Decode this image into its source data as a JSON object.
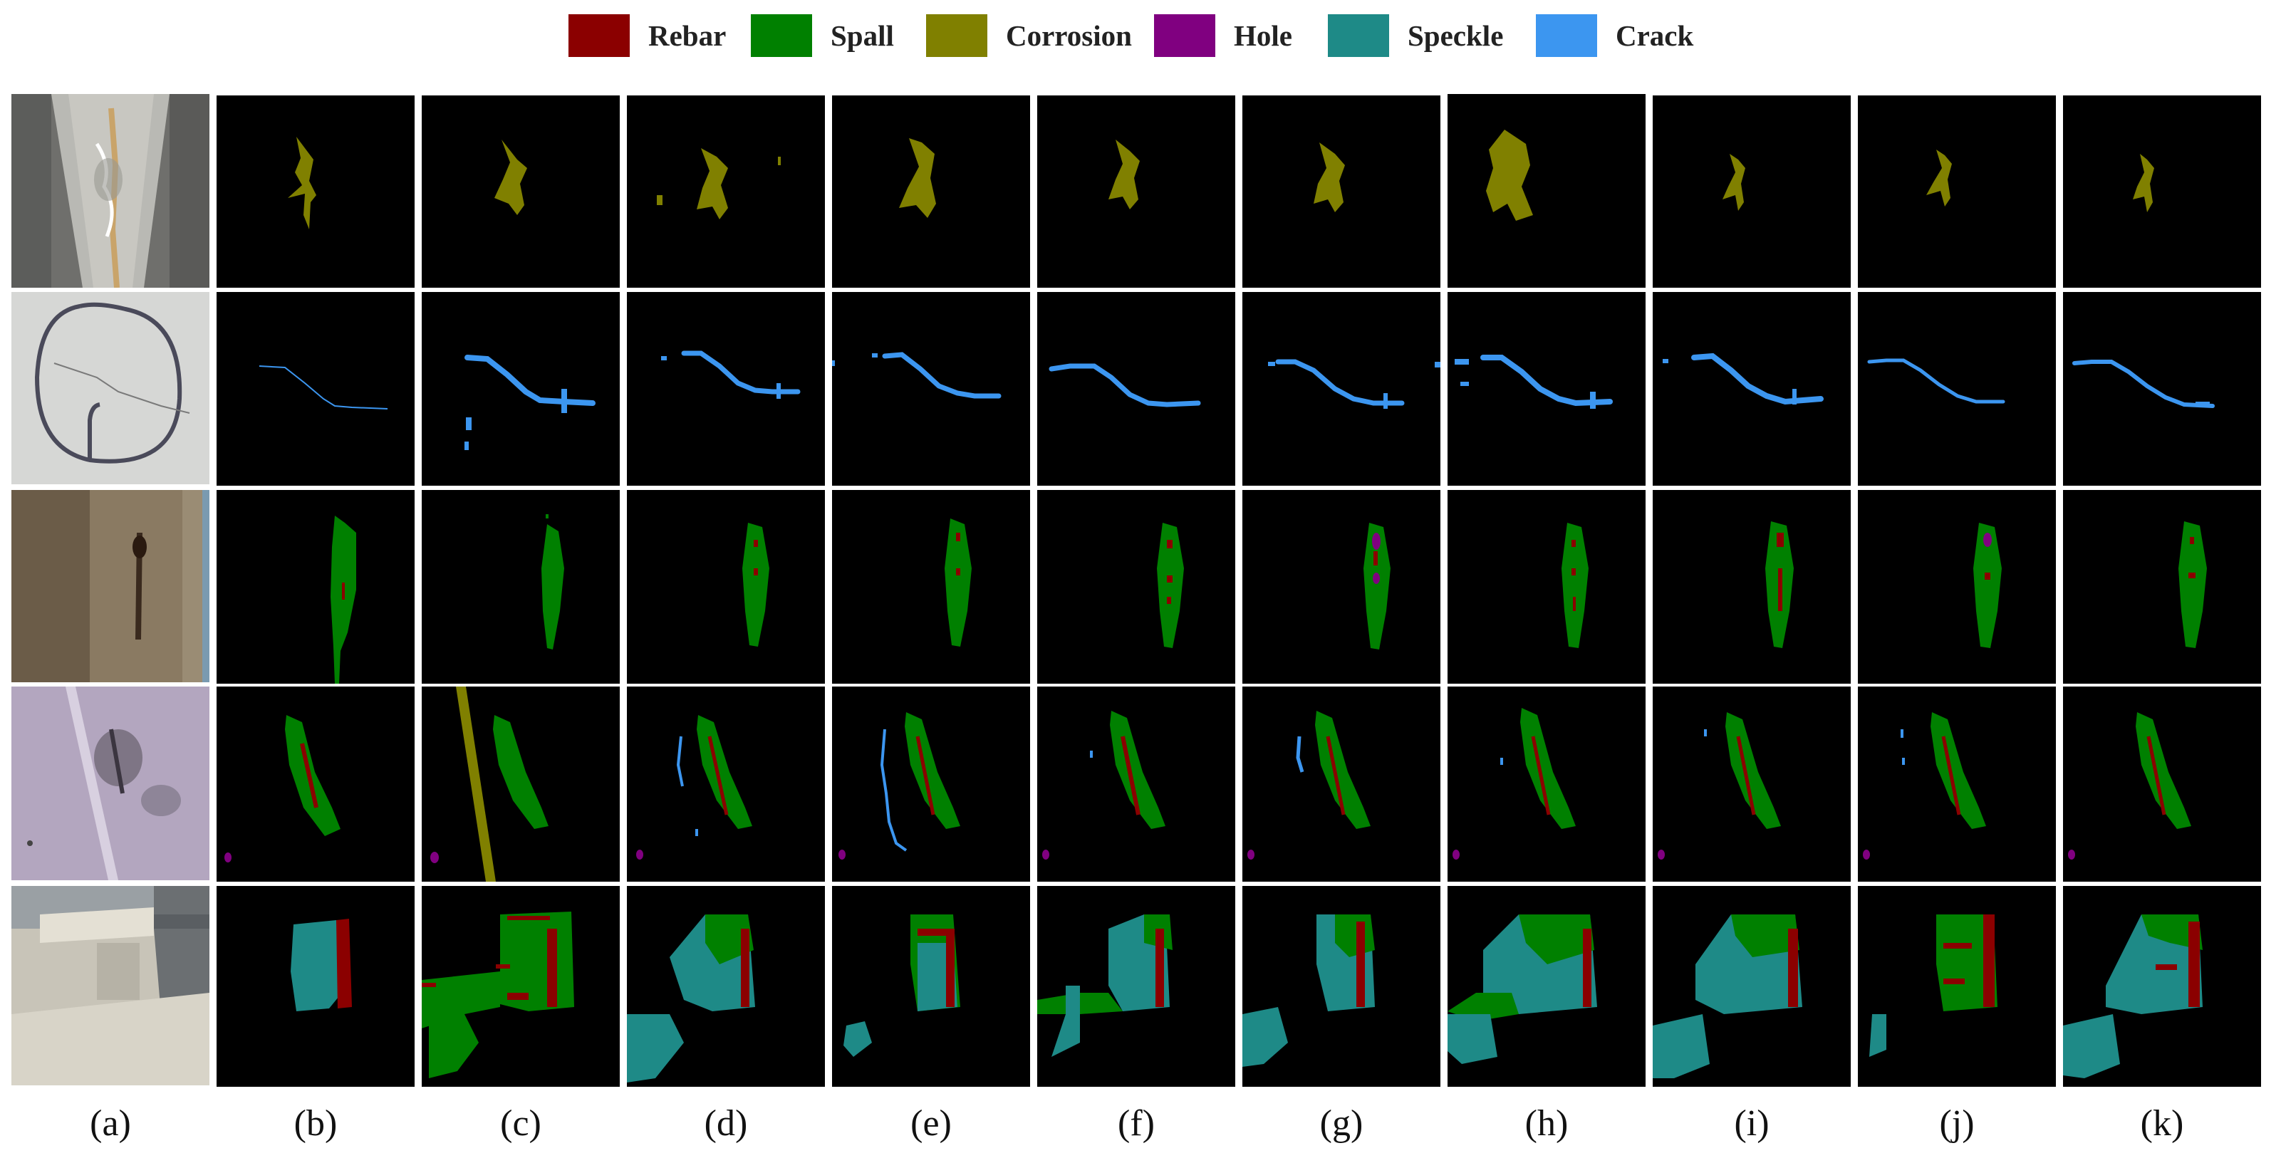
{
  "legend": [
    {
      "label": "Rebar",
      "color": "#8b0000"
    },
    {
      "label": "Spall",
      "color": "#008000"
    },
    {
      "label": "Corrosion",
      "color": "#808000"
    },
    {
      "label": "Hole",
      "color": "#800080"
    },
    {
      "label": "Speckle",
      "color": "#1e8a87"
    },
    {
      "label": "Crack",
      "color": "#3c96f0"
    }
  ],
  "columns": [
    "(a)",
    "(b)",
    "(c)",
    "(d)",
    "(e)",
    "(f)",
    "(g)",
    "(h)",
    "(i)",
    "(j)",
    "(k)"
  ],
  "rows": [
    {
      "row": 1,
      "photo": "concrete-beam-corrosion-photo",
      "defect": "corrosion"
    },
    {
      "row": 2,
      "photo": "concrete-crack-circled-photo",
      "defect": "crack"
    },
    {
      "row": 3,
      "photo": "wood-column-spall-rebar-photo",
      "defect": "spall-rebar-hole"
    },
    {
      "row": 4,
      "photo": "purple-concrete-spall-photo",
      "defect": "spall-rebar-crack-hole"
    },
    {
      "row": 5,
      "photo": "concrete-block-speckle-photo",
      "defect": "speckle-spall-rebar"
    }
  ]
}
